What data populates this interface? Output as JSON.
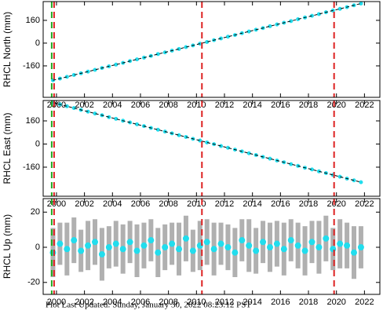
{
  "footer": "Plot Last Updated:   Sunday, January 30, 2022 08:23:12 PST",
  "chart_data": [
    {
      "type": "scatter",
      "y_label": "RHCL North (mm)",
      "xlim": [
        1999.05,
        2023.1
      ],
      "xticks": [
        2000,
        2002,
        2004,
        2006,
        2008,
        2010,
        2012,
        2014,
        2016,
        2018,
        2020,
        2022
      ],
      "ylim": [
        -381,
        292
      ],
      "yticks": [
        -160,
        0,
        160
      ],
      "vlines": [
        {
          "x": 1999.66,
          "color": "#22aa22"
        },
        {
          "x": 1999.83,
          "color": "#dd2222"
        },
        {
          "x": 2010.39,
          "color": "#dd2222"
        },
        {
          "x": 2019.83,
          "color": "#dd2222"
        }
      ],
      "series": [
        {
          "color": "#22dded",
          "x": [
            1999.75,
            2000.25,
            2000.75,
            2001.25,
            2001.75,
            2002.25,
            2002.75,
            2003.25,
            2003.75,
            2004.25,
            2004.75,
            2005.25,
            2005.75,
            2006.25,
            2006.75,
            2007.25,
            2007.75,
            2008.25,
            2008.75,
            2009.25,
            2009.75,
            2010.25,
            2010.75,
            2011.25,
            2011.75,
            2012.25,
            2012.75,
            2013.25,
            2013.75,
            2014.25,
            2014.75,
            2015.25,
            2015.75,
            2016.25,
            2016.75,
            2017.25,
            2017.75,
            2018.25,
            2018.75,
            2019.25,
            2019.75,
            2020.25,
            2020.75,
            2021.25,
            2021.75
          ],
          "values": [
            -261,
            -249,
            -237,
            -224,
            -212,
            -200,
            -188,
            -175,
            -163,
            -151,
            -139,
            -126,
            -114,
            -102,
            -90,
            -77,
            -65,
            -53,
            -41,
            -28,
            -16,
            -4,
            8,
            21,
            33,
            45,
            57,
            70,
            82,
            94,
            106,
            119,
            131,
            143,
            155,
            168,
            180,
            192,
            204,
            217,
            229,
            241,
            253,
            266,
            278
          ]
        }
      ]
    },
    {
      "type": "scatter",
      "y_label": "RHCL East (mm)",
      "xlim": [
        1999.05,
        2023.1
      ],
      "xticks": [
        2000,
        2002,
        2004,
        2006,
        2008,
        2010,
        2012,
        2014,
        2016,
        2018,
        2020,
        2022
      ],
      "ylim": [
        -361,
        301
      ],
      "yticks": [
        -160,
        0,
        160
      ],
      "vlines": [
        {
          "x": 1999.66,
          "color": "#22aa22"
        },
        {
          "x": 1999.83,
          "color": "#dd2222"
        },
        {
          "x": 2010.39,
          "color": "#dd2222"
        },
        {
          "x": 2019.83,
          "color": "#dd2222"
        }
      ],
      "series": [
        {
          "color": "#22dded",
          "x": [
            1999.75,
            2000.25,
            2000.75,
            2001.25,
            2001.75,
            2002.25,
            2002.75,
            2003.25,
            2003.75,
            2004.25,
            2004.75,
            2005.25,
            2005.75,
            2006.25,
            2006.75,
            2007.25,
            2007.75,
            2008.25,
            2008.75,
            2009.25,
            2009.75,
            2010.25,
            2010.75,
            2011.25,
            2011.75,
            2012.25,
            2012.75,
            2013.25,
            2013.75,
            2014.25,
            2014.75,
            2015.25,
            2015.75,
            2016.25,
            2016.75,
            2017.25,
            2017.75,
            2018.25,
            2018.75,
            2019.25,
            2019.75,
            2020.25,
            2020.75,
            2021.25,
            2021.75
          ],
          "values": [
            286,
            274,
            261,
            249,
            236,
            224,
            211,
            199,
            186,
            174,
            161,
            149,
            136,
            124,
            111,
            99,
            86,
            74,
            61,
            49,
            36,
            24,
            11,
            -1,
            -14,
            -26,
            -39,
            -51,
            -64,
            -76,
            -89,
            -101,
            -114,
            -126,
            -139,
            -151,
            -164,
            -176,
            -189,
            -201,
            -214,
            -226,
            -239,
            -251,
            -264
          ]
        }
      ]
    },
    {
      "type": "scatter",
      "y_label": "RHCL Up (mm)",
      "xlim": [
        1999.05,
        2023.1
      ],
      "xticks": [
        2000,
        2002,
        2004,
        2006,
        2008,
        2010,
        2012,
        2014,
        2016,
        2018,
        2020,
        2022
      ],
      "ylim": [
        -26.8,
        27.7
      ],
      "yticks": [
        -20,
        0,
        20
      ],
      "vlines": [
        {
          "x": 1999.66,
          "color": "#22aa22"
        },
        {
          "x": 1999.83,
          "color": "#dd2222"
        },
        {
          "x": 2010.39,
          "color": "#dd2222"
        },
        {
          "x": 2019.83,
          "color": "#dd2222"
        }
      ],
      "series": [
        {
          "color": "#22dded",
          "error_color": "#b0b0b0",
          "x": [
            1999.75,
            2000.25,
            2000.75,
            2001.25,
            2001.75,
            2002.25,
            2002.75,
            2003.25,
            2003.75,
            2004.25,
            2004.75,
            2005.25,
            2005.75,
            2006.25,
            2006.75,
            2007.25,
            2007.75,
            2008.25,
            2008.75,
            2009.25,
            2009.75,
            2010.25,
            2010.75,
            2011.25,
            2011.75,
            2012.25,
            2012.75,
            2013.25,
            2013.75,
            2014.25,
            2014.75,
            2015.25,
            2015.75,
            2016.25,
            2016.75,
            2017.25,
            2017.75,
            2018.25,
            2018.75,
            2019.25,
            2019.75,
            2020.25,
            2020.75,
            2021.25,
            2021.75
          ],
          "values": [
            -3,
            2,
            -1,
            4,
            -2,
            1,
            3,
            -4,
            0,
            2,
            -1,
            3,
            -2,
            1,
            4,
            -3,
            0,
            2,
            -1,
            5,
            -2,
            1,
            3,
            -1,
            2,
            0,
            -3,
            4,
            1,
            -2,
            3,
            0,
            2,
            -1,
            4,
            1,
            -2,
            3,
            0,
            5,
            -1,
            2,
            1,
            -3,
            0
          ],
          "errors": [
            14,
            12,
            15,
            13,
            12,
            14,
            13,
            15,
            12,
            13,
            14,
            12,
            15,
            13,
            12,
            14,
            13,
            12,
            15,
            13,
            12,
            14,
            13,
            15,
            12,
            13,
            14,
            12,
            15,
            13,
            12,
            14,
            13,
            15,
            12,
            13,
            14,
            12,
            15,
            13,
            12,
            14,
            13,
            15,
            12
          ]
        }
      ]
    }
  ]
}
